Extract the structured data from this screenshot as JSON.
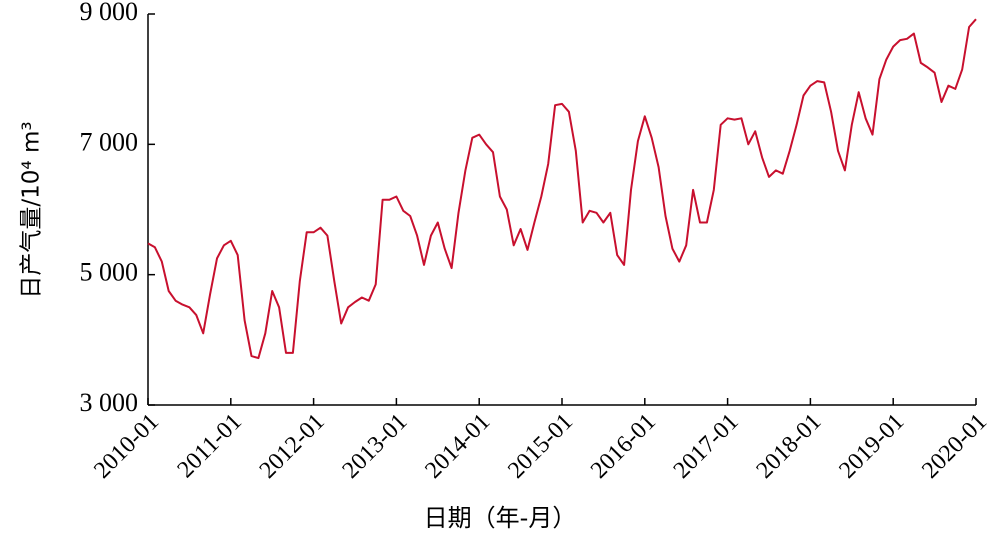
{
  "chart_data": {
    "type": "line",
    "xlabel": "日期（年-月）",
    "ylabel": "日产气量/10⁴ m³",
    "x": [
      "2010-01",
      "2010-02",
      "2010-03",
      "2010-04",
      "2010-05",
      "2010-06",
      "2010-07",
      "2010-08",
      "2010-09",
      "2010-10",
      "2010-11",
      "2010-12",
      "2011-01",
      "2011-02",
      "2011-03",
      "2011-04",
      "2011-05",
      "2011-06",
      "2011-07",
      "2011-08",
      "2011-09",
      "2011-10",
      "2011-11",
      "2011-12",
      "2012-01",
      "2012-02",
      "2012-03",
      "2012-04",
      "2012-05",
      "2012-06",
      "2012-07",
      "2012-08",
      "2012-09",
      "2012-10",
      "2012-11",
      "2012-12",
      "2013-01",
      "2013-02",
      "2013-03",
      "2013-04",
      "2013-05",
      "2013-06",
      "2013-07",
      "2013-08",
      "2013-09",
      "2013-10",
      "2013-11",
      "2013-12",
      "2014-01",
      "2014-02",
      "2014-03",
      "2014-04",
      "2014-05",
      "2014-06",
      "2014-07",
      "2014-08",
      "2014-09",
      "2014-10",
      "2014-11",
      "2014-12",
      "2015-01",
      "2015-02",
      "2015-03",
      "2015-04",
      "2015-05",
      "2015-06",
      "2015-07",
      "2015-08",
      "2015-09",
      "2015-10",
      "2015-11",
      "2015-12",
      "2016-01",
      "2016-02",
      "2016-03",
      "2016-04",
      "2016-05",
      "2016-06",
      "2016-07",
      "2016-08",
      "2016-09",
      "2016-10",
      "2016-11",
      "2016-12",
      "2017-01",
      "2017-02",
      "2017-03",
      "2017-04",
      "2017-05",
      "2017-06",
      "2017-07",
      "2017-08",
      "2017-09",
      "2017-10",
      "2017-11",
      "2017-12",
      "2018-01",
      "2018-02",
      "2018-03",
      "2018-04",
      "2018-05",
      "2018-06",
      "2018-07",
      "2018-08",
      "2018-09",
      "2018-10",
      "2018-11",
      "2018-12",
      "2019-01",
      "2019-02",
      "2019-03",
      "2019-04",
      "2019-05",
      "2019-06",
      "2019-07",
      "2019-08",
      "2019-09",
      "2019-10",
      "2019-11",
      "2019-12",
      "2020-01"
    ],
    "series": [
      {
        "color": "#c8102e",
        "values": [
          5480,
          5420,
          5200,
          4750,
          4600,
          4540,
          4500,
          4380,
          4100,
          4700,
          5250,
          5450,
          5520,
          5300,
          4300,
          3750,
          3720,
          4100,
          4750,
          4500,
          3800,
          3800,
          4900,
          5650,
          5650,
          5720,
          5600,
          4900,
          4250,
          4500,
          4580,
          4650,
          4600,
          4850,
          6150,
          6150,
          6200,
          5980,
          5900,
          5600,
          5150,
          5600,
          5800,
          5400,
          5100,
          5950,
          6600,
          7100,
          7150,
          7000,
          6880,
          6200,
          6000,
          5450,
          5700,
          5380,
          5800,
          6200,
          6700,
          7600,
          7620,
          7500,
          6900,
          5800,
          5980,
          5950,
          5800,
          5950,
          5300,
          5150,
          6300,
          7050,
          7430,
          7100,
          6650,
          5900,
          5400,
          5200,
          5450,
          6300,
          5800,
          5800,
          6300,
          7300,
          7400,
          7380,
          7400,
          7000,
          7200,
          6800,
          6500,
          6600,
          6550,
          6900,
          7300,
          7750,
          7900,
          7970,
          7950,
          7500,
          6900,
          6600,
          7300,
          7800,
          7400,
          7150,
          8000,
          8300,
          8500,
          8600,
          8620,
          8700,
          8250,
          8180,
          8100,
          7650,
          7900,
          7850,
          8150,
          8800,
          8920
        ]
      }
    ],
    "xticks": [
      "2010-01",
      "2011-01",
      "2012-01",
      "2013-01",
      "2014-01",
      "2015-01",
      "2016-01",
      "2017-01",
      "2018-01",
      "2019-01",
      "2020-01"
    ],
    "ylim": [
      3000,
      9000
    ],
    "yticks": [
      {
        "value": 3000,
        "label": "3 000"
      },
      {
        "value": 5000,
        "label": "5 000"
      },
      {
        "value": 7000,
        "label": "7 000"
      },
      {
        "value": 9000,
        "label": "9 000"
      }
    ]
  }
}
